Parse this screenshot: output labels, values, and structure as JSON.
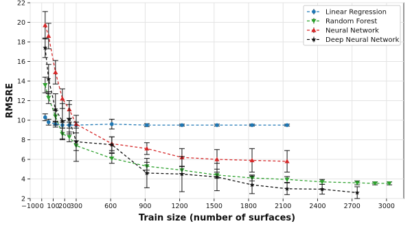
{
  "chart_data": {
    "type": "line",
    "xlabel": "Train size (number of surfaces)",
    "ylabel": "RMSRE",
    "xlim": [
      -100,
      3150
    ],
    "ylim": [
      2,
      22
    ],
    "grid": true,
    "legend_position": "top-right",
    "x_tick_labels": [
      "−100",
      "0",
      "100",
      "200",
      "300",
      "600",
      "900",
      "1200",
      "1500",
      "1800",
      "2100",
      "2400",
      "2700",
      "3000"
    ],
    "x_ticks": [
      -100,
      0,
      100,
      200,
      300,
      600,
      900,
      1200,
      1500,
      1800,
      2100,
      2400,
      2700,
      3000
    ],
    "y_ticks": [
      2,
      4,
      6,
      8,
      10,
      12,
      14,
      16,
      18,
      20,
      22
    ],
    "y_tick_labels": [
      "2",
      "4",
      "6",
      "8",
      "10",
      "12",
      "14",
      "16",
      "18",
      "20",
      "22"
    ],
    "series": [
      {
        "name": "Linear Regression",
        "color": "#1f77b4",
        "marker": "circle",
        "x": [
          30,
          60,
          120,
          180,
          240,
          300,
          610,
          915,
          1220,
          1525,
          1830,
          2135
        ],
        "y": [
          10.3,
          9.8,
          9.6,
          9.5,
          9.5,
          9.5,
          9.6,
          9.5,
          9.5,
          9.5,
          9.5,
          9.5
        ],
        "err": [
          0.35,
          0.3,
          0.3,
          0.3,
          0.3,
          0.3,
          0.5,
          0.15,
          0.1,
          0.1,
          0.1,
          0.1
        ]
      },
      {
        "name": "Random Forest",
        "color": "#2ca02c",
        "marker": "triangle-down",
        "x": [
          30,
          60,
          120,
          180,
          240,
          300,
          610,
          915,
          1220,
          1525,
          1830,
          2135,
          2440,
          2745,
          2900,
          3025
        ],
        "y": [
          13.6,
          12.3,
          10.4,
          8.6,
          8.3,
          7.4,
          6.1,
          5.3,
          4.9,
          4.4,
          4.1,
          3.95,
          3.7,
          3.6,
          3.55,
          3.55
        ],
        "err": [
          0.8,
          0.6,
          0.6,
          0.6,
          0.5,
          0.5,
          0.5,
          0.4,
          0.35,
          0.3,
          0.3,
          0.3,
          0.25,
          0.2,
          0.15,
          0.15
        ]
      },
      {
        "name": "Neural Network",
        "color": "#d62728",
        "marker": "triangle-up",
        "x": [
          30,
          60,
          120,
          180,
          240,
          300,
          610,
          915,
          1220,
          1525,
          1830,
          2135
        ],
        "y": [
          19.7,
          18.6,
          14.9,
          12.2,
          11.1,
          9.6,
          7.6,
          7.1,
          6.2,
          6.0,
          5.9,
          5.8
        ],
        "err": [
          1.4,
          1.3,
          1.2,
          1.0,
          0.9,
          0.9,
          0.7,
          0.6,
          0.9,
          1.0,
          1.2,
          1.1
        ]
      },
      {
        "name": "Deep Neural Network",
        "color": "#111111",
        "marker": "star",
        "x": [
          30,
          60,
          120,
          180,
          240,
          300,
          610,
          915,
          1220,
          1525,
          1830,
          2135,
          2440,
          2745
        ],
        "y": [
          17.4,
          14.2,
          11.1,
          9.9,
          10.1,
          7.8,
          7.5,
          4.6,
          4.5,
          4.2,
          3.4,
          3.0,
          2.95,
          2.6
        ],
        "err": [
          1.0,
          1.5,
          1.6,
          1.8,
          1.5,
          2.0,
          0.8,
          1.5,
          1.8,
          1.4,
          0.9,
          0.6,
          0.5,
          0.6
        ]
      }
    ]
  }
}
